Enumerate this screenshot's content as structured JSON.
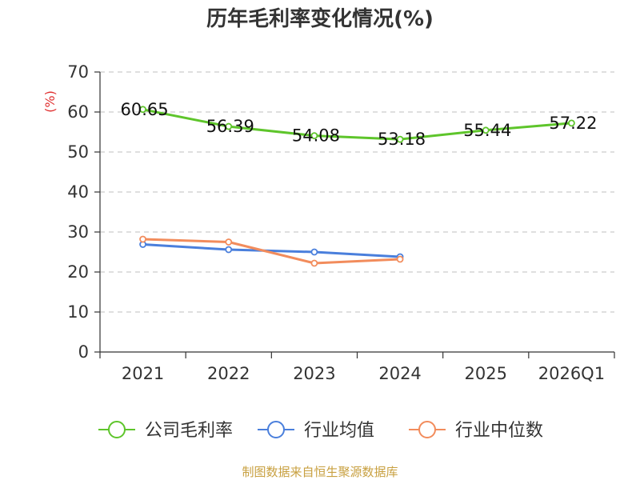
{
  "chart_data": {
    "type": "line",
    "title": "历年毛利率变化情况(%)",
    "ylabel": "(%)",
    "xlabel": "",
    "ylim": [
      0,
      70
    ],
    "yticks": [
      0,
      10,
      20,
      30,
      40,
      50,
      60,
      70
    ],
    "grid": true,
    "legend_position": "bottom",
    "categories": [
      "2021",
      "2022",
      "2023",
      "2024",
      "2025",
      "2026Q1"
    ],
    "series": [
      {
        "name": "公司毛利率",
        "color": "#5ec52b",
        "values": [
          60.65,
          56.39,
          54.08,
          53.18,
          55.44,
          57.22
        ],
        "labels": [
          "60.65",
          "56.39",
          "54.08",
          "53.18",
          "55.44",
          "57.22"
        ],
        "show_labels": true
      },
      {
        "name": "行业均值",
        "color": "#4a7fdc",
        "values": [
          26.9,
          25.6,
          25.0,
          23.8,
          null,
          null
        ],
        "show_labels": false
      },
      {
        "name": "行业中位数",
        "color": "#f28c5c",
        "values": [
          28.2,
          27.5,
          22.2,
          23.2,
          null,
          null
        ],
        "show_labels": false
      }
    ]
  },
  "footer": {
    "source": "制图数据来自恒生聚源数据库"
  }
}
